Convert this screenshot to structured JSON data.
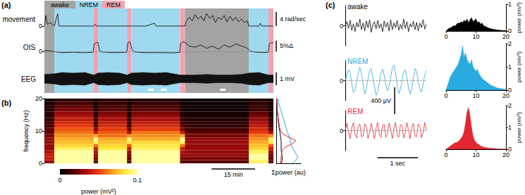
{
  "chart_data": [
    {
      "type": "line",
      "title": "(a)",
      "ylabel": "movement",
      "legend": "top",
      "states": {
        "names": [
          "awake",
          "NREM",
          "REM"
        ],
        "colors": [
          "#a3a3a3",
          "#9fd9f0",
          "#f2a3ad"
        ],
        "segments": [
          {
            "state": "awake",
            "start": 0,
            "end": 3.4
          },
          {
            "state": "NREM",
            "start": 3.4,
            "end": 17
          },
          {
            "state": "REM",
            "start": 17,
            "end": 18.5
          },
          {
            "state": "NREM",
            "start": 18.5,
            "end": 28.5
          },
          {
            "state": "REM",
            "start": 28.5,
            "end": 30
          },
          {
            "state": "NREM",
            "start": 30,
            "end": 46.8
          },
          {
            "state": "REM",
            "start": 46.8,
            "end": 48.5
          },
          {
            "state": "awake",
            "start": 48.5,
            "end": 70.5
          },
          {
            "state": "NREM",
            "start": 70.5,
            "end": 77.3
          },
          {
            "state": "REM",
            "start": 77.3,
            "end": 79
          }
        ]
      },
      "x": [
        0,
        0.5,
        1,
        2,
        3,
        3.4,
        4.6,
        5,
        10,
        16,
        17,
        17.5,
        18,
        25,
        30,
        35,
        38,
        38.5,
        45,
        48.5,
        49,
        50,
        51,
        52,
        53,
        54,
        55,
        56,
        57,
        58,
        59,
        60,
        61,
        62,
        63,
        64,
        65,
        66,
        67,
        68,
        69,
        70,
        70.5,
        74,
        74.5,
        75,
        79
      ],
      "values": [
        0.2,
        3.0,
        0.5,
        1.0,
        0.3,
        0,
        3.5,
        0,
        0,
        0,
        0,
        0.5,
        0,
        0,
        0,
        0,
        0.8,
        0,
        0,
        0,
        1.5,
        2.5,
        1.5,
        3.2,
        2.0,
        2.8,
        1.5,
        3.5,
        2.2,
        3.0,
        1.0,
        2.5,
        1.8,
        3.0,
        1.2,
        2.8,
        1.5,
        2.5,
        1.2,
        2.0,
        1.0,
        1.5,
        0,
        0,
        0.8,
        0,
        0
      ],
      "color": "#000000",
      "xlim": [
        0,
        79
      ],
      "ylim": [
        -1,
        5
      ],
      "yticks": [
        0
      ],
      "tick_labels": "y",
      "scalebar": {
        "value": 4,
        "label": "4 rad/sec"
      }
    },
    {
      "type": "line",
      "ylabel": "OIS",
      "x": [
        0,
        2,
        3.4,
        6,
        10,
        14,
        16.8,
        17.2,
        18,
        18.5,
        19,
        20,
        24,
        28.4,
        28.8,
        29.5,
        30.2,
        31,
        35,
        40,
        44,
        46.7,
        47,
        48,
        48.7,
        50,
        52,
        54,
        56,
        58,
        60,
        62,
        64,
        66,
        68,
        70,
        71,
        73,
        76,
        77.2,
        77.6,
        78.5,
        79
      ],
      "values": [
        0.5,
        0.3,
        0,
        -0.5,
        -0.3,
        -0.5,
        -0.3,
        3.5,
        4.2,
        4.0,
        0.5,
        -0.2,
        -0.5,
        -0.3,
        4.0,
        4.5,
        1.0,
        -0.2,
        -0.5,
        -0.5,
        -0.6,
        -0.4,
        3.8,
        4.5,
        4.0,
        2.5,
        2.0,
        3.0,
        1.5,
        2.5,
        1.0,
        3.0,
        2.0,
        3.5,
        2.5,
        1.5,
        0.2,
        -0.3,
        -0.4,
        -0.3,
        3.5,
        4.2,
        4.0
      ],
      "color": "#000000",
      "xlim": [
        0,
        79
      ],
      "ylim": [
        -6,
        10
      ],
      "yticks": [
        0
      ],
      "grid": true,
      "tick_labels": "y",
      "scalebar": {
        "value": 5,
        "label": "5%Δ"
      }
    },
    {
      "type": "band",
      "ylabel": "EEG",
      "x": [
        0,
        3.4,
        6,
        10,
        14,
        17,
        18.5,
        22,
        26,
        28.5,
        30,
        34,
        38,
        42,
        46.8,
        48.5,
        52,
        56,
        60,
        64,
        68,
        70.5,
        74,
        77.3,
        79
      ],
      "upper": [
        0.35,
        0.4,
        0.5,
        0.45,
        0.5,
        0.3,
        0.45,
        0.5,
        0.45,
        0.3,
        0.45,
        0.5,
        0.45,
        0.5,
        0.3,
        0.3,
        0.3,
        0.35,
        0.3,
        0.3,
        0.35,
        0.45,
        0.5,
        0.3,
        0.3
      ],
      "lower": [
        -0.35,
        -0.4,
        -0.5,
        -0.45,
        -0.5,
        -0.3,
        -0.45,
        -0.5,
        -0.45,
        -0.3,
        -0.45,
        -0.5,
        -0.45,
        -0.5,
        -0.3,
        -0.3,
        -0.3,
        -0.35,
        -0.3,
        -0.3,
        -0.35,
        -0.45,
        -0.5,
        -0.3,
        -0.3
      ],
      "color": "#111111",
      "xlim": [
        0,
        79
      ],
      "ylim": [
        -1.1,
        1.1
      ],
      "tick_labels": false,
      "excerpts": [
        [
          35.8,
          37.7
        ],
        [
          40.1,
          42.1
        ],
        [
          60.6,
          62.5
        ]
      ],
      "scalebar": {
        "value": 1,
        "label": "1 mV"
      }
    },
    {
      "type": "heatmap",
      "title": "(b)",
      "ylabel": "frequency (Hz)",
      "time_edges": [
        0,
        3.4,
        17,
        18.5,
        28.5,
        30,
        46.8,
        48.5,
        70.5,
        77.3,
        79
      ],
      "freq_edges": [
        0,
        1,
        2,
        3,
        4,
        5,
        6,
        7,
        8,
        9,
        10,
        11,
        12,
        13,
        14,
        15,
        16,
        17,
        18,
        19,
        20
      ],
      "power": [
        [
          0.03,
          0.04,
          0.04,
          0.035,
          0.03,
          0.03,
          0.03,
          0.03,
          0.025,
          0.02,
          0.02,
          0.015,
          0.015,
          0.01,
          0.01,
          0.01,
          0.008,
          0.006,
          0.005,
          0.004
        ],
        [
          0.1,
          0.1,
          0.1,
          0.1,
          0.09,
          0.08,
          0.075,
          0.07,
          0.065,
          0.06,
          0.055,
          0.05,
          0.045,
          0.04,
          0.035,
          0.03,
          0.025,
          0.02,
          0.015,
          0.01
        ],
        [
          0.02,
          0.025,
          0.03,
          0.035,
          0.04,
          0.06,
          0.09,
          0.1,
          0.07,
          0.04,
          0.025,
          0.02,
          0.015,
          0.012,
          0.01,
          0.008,
          0.006,
          0.005,
          0.004,
          0.003
        ],
        [
          0.1,
          0.1,
          0.1,
          0.1,
          0.085,
          0.08,
          0.075,
          0.07,
          0.06,
          0.055,
          0.05,
          0.045,
          0.04,
          0.035,
          0.03,
          0.025,
          0.02,
          0.015,
          0.012,
          0.01
        ],
        [
          0.02,
          0.02,
          0.025,
          0.03,
          0.04,
          0.055,
          0.085,
          0.095,
          0.065,
          0.035,
          0.02,
          0.015,
          0.012,
          0.01,
          0.008,
          0.006,
          0.005,
          0.004,
          0.003,
          0.003
        ],
        [
          0.1,
          0.1,
          0.1,
          0.1,
          0.09,
          0.085,
          0.08,
          0.07,
          0.065,
          0.06,
          0.05,
          0.045,
          0.04,
          0.035,
          0.03,
          0.025,
          0.02,
          0.015,
          0.012,
          0.008
        ],
        [
          0.02,
          0.025,
          0.03,
          0.035,
          0.04,
          0.06,
          0.09,
          0.1,
          0.07,
          0.04,
          0.025,
          0.02,
          0.015,
          0.012,
          0.01,
          0.008,
          0.006,
          0.005,
          0.004,
          0.003
        ],
        [
          0.02,
          0.025,
          0.03,
          0.03,
          0.03,
          0.03,
          0.03,
          0.03,
          0.025,
          0.02,
          0.015,
          0.012,
          0.01,
          0.008,
          0.006,
          0.005,
          0.004,
          0.003,
          0.003,
          0.002
        ],
        [
          0.09,
          0.1,
          0.1,
          0.09,
          0.08,
          0.075,
          0.07,
          0.065,
          0.06,
          0.05,
          0.045,
          0.04,
          0.035,
          0.03,
          0.025,
          0.02,
          0.015,
          0.012,
          0.01,
          0.008
        ],
        [
          0.02,
          0.02,
          0.025,
          0.03,
          0.04,
          0.055,
          0.085,
          0.095,
          0.065,
          0.035,
          0.02,
          0.015,
          0.012,
          0.01,
          0.008,
          0.006,
          0.005,
          0.004,
          0.003,
          0.003
        ]
      ],
      "xlim": [
        0,
        79
      ],
      "ylim": [
        0,
        20
      ],
      "yticks": [
        0,
        10,
        20
      ],
      "tick_labels": "y",
      "colorbar": {
        "range": [
          0,
          0.1
        ],
        "ticks": [
          0,
          0.1
        ],
        "label": "power (mV²)",
        "colors": [
          "#000000",
          "#4a0000",
          "#a80c0c",
          "#e63b0e",
          "#f99a1c",
          "#ffe63c",
          "#ffffa0"
        ]
      },
      "scalebar": {
        "value": 15,
        "label": "15 min"
      }
    },
    {
      "type": "line",
      "xlabel": "Σpower (au)",
      "y": [
        0,
        1,
        2,
        3,
        4,
        5,
        6,
        7,
        8,
        9,
        10,
        11,
        12,
        13,
        14,
        15,
        16,
        17,
        18,
        19,
        20
      ],
      "series": [
        {
          "color": "#000000",
          "values": [
            0.5,
            0.6,
            0.6,
            0.55,
            0.5,
            0.5,
            0.5,
            0.5,
            0.45,
            0.4,
            0.35,
            0.3,
            0.25,
            0.2,
            0.18,
            0.15,
            0.12,
            0.1,
            0.08,
            0.06,
            0.05
          ]
        },
        {
          "color": "#29abe2",
          "values": [
            1.6,
            2.0,
            2.2,
            2.0,
            1.8,
            1.6,
            1.5,
            1.4,
            1.3,
            1.2,
            1.1,
            1.0,
            0.9,
            0.8,
            0.7,
            0.6,
            0.5,
            0.4,
            0.3,
            0.2,
            0.15
          ]
        },
        {
          "color": "#e3262f",
          "values": [
            0.4,
            0.45,
            0.5,
            0.55,
            0.6,
            0.9,
            1.6,
            2.0,
            1.3,
            0.7,
            0.45,
            0.35,
            0.3,
            0.25,
            0.2,
            0.15,
            0.12,
            0.1,
            0.08,
            0.06,
            0.05
          ]
        }
      ],
      "xlim": [
        0,
        2.5
      ],
      "ylim": [
        0,
        20
      ],
      "tick_labels": false
    },
    {
      "type": "line",
      "title": "(c)",
      "x": [
        0,
        0.04,
        0.08,
        0.12,
        0.16,
        0.2,
        0.24,
        0.28,
        0.32,
        0.36,
        0.4,
        0.44,
        0.48,
        0.52,
        0.56,
        0.6,
        0.64,
        0.68,
        0.72,
        0.76,
        0.8,
        0.84,
        0.88,
        0.92,
        0.96,
        1,
        1.04,
        1.08,
        1.12,
        1.16,
        1.2,
        1.24,
        1.28,
        1.32,
        1.36,
        1.4,
        1.44,
        1.48,
        1.52,
        1.56,
        1.6,
        1.64,
        1.68,
        1.72,
        1.76,
        1.8,
        1.84,
        1.88,
        1.92,
        1.96,
        2
      ],
      "series": [
        {
          "name": "awake",
          "color": "#000000",
          "values": [
            0,
            60,
            -40,
            80,
            -70,
            30,
            -90,
            50,
            -20,
            100,
            -60,
            40,
            -80,
            70,
            -30,
            90,
            -100,
            20,
            60,
            -50,
            80,
            -40,
            30,
            -90,
            70,
            -20,
            50,
            -80,
            90,
            -60,
            40,
            -30,
            80,
            -70,
            20,
            -50,
            100,
            -40,
            60,
            -90,
            30,
            -20,
            70,
            -60,
            50,
            -80,
            40,
            -30,
            90,
            -50,
            20
          ]
        },
        {
          "name": "NREM",
          "color": "#29abe2",
          "values": [
            0,
            80,
            160,
            120,
            -40,
            -180,
            -140,
            -20,
            100,
            200,
            90,
            -60,
            -200,
            -120,
            20,
            150,
            180,
            60,
            -100,
            -220,
            -160,
            -30,
            110,
            170,
            80,
            -50,
            -150,
            -90,
            40,
            190,
            230,
            100,
            -70,
            -190,
            -130,
            10,
            140,
            160,
            50,
            -110,
            -200,
            -120,
            30,
            180,
            140,
            0,
            -130,
            -170,
            -60,
            90,
            150
          ]
        },
        {
          "name": "REM",
          "color": "#e3262f",
          "values": [
            0,
            110,
            -20,
            -120,
            40,
            120,
            -60,
            -110,
            70,
            100,
            -90,
            -80,
            100,
            60,
            -120,
            -30,
            110,
            0,
            -120,
            40,
            120,
            -60,
            -100,
            80,
            90,
            -100,
            -50,
            110,
            20,
            -120,
            30,
            120,
            -70,
            -100,
            90,
            70,
            -110,
            -40,
            120,
            10,
            -120,
            50,
            110,
            -80,
            -90,
            100,
            60,
            -110,
            -30,
            120,
            0
          ]
        }
      ],
      "xlim": [
        0,
        2
      ],
      "ylim": [
        -300,
        300
      ],
      "yticks": [
        0
      ],
      "grid": true,
      "tick_labels": "y",
      "scalebars": [
        {
          "axis": "y",
          "value": 400,
          "label": "400 µV"
        },
        {
          "axis": "x",
          "value": 1,
          "label": "1 sec"
        }
      ]
    },
    {
      "type": "area",
      "ylabel": "power (mV²)",
      "x": [
        0,
        0.5,
        1,
        1.5,
        2,
        2.5,
        3,
        3.5,
        4,
        4.5,
        5,
        5.5,
        6,
        6.5,
        7,
        7.5,
        8,
        8.5,
        9,
        9.5,
        10,
        10.5,
        11,
        11.5,
        12,
        12.5,
        13,
        13.5,
        14,
        14.5,
        15,
        15.5,
        16,
        16.5,
        17,
        17.5,
        18,
        18.5,
        19,
        19.5,
        20
      ],
      "series": [
        {
          "color": "#000000",
          "ylim": [
            0,
            1
          ],
          "yticks": [
            0,
            1
          ],
          "values": [
            0,
            0.05,
            0.1,
            0.12,
            0.15,
            0.2,
            0.18,
            0.25,
            0.3,
            0.28,
            0.35,
            0.3,
            0.4,
            0.35,
            0.45,
            0.3,
            0.42,
            0.5,
            0.35,
            0.4,
            0.45,
            0.3,
            0.35,
            0.25,
            0.3,
            0.2,
            0.18,
            0.15,
            0.12,
            0.1,
            0.08,
            0.07,
            0.06,
            0.05,
            0.04,
            0.03,
            0.03,
            0.02,
            0.02,
            0.01,
            0.01
          ]
        },
        {
          "color": "#29abe2",
          "ylim": [
            0,
            2
          ],
          "yticks": [
            0,
            1,
            2
          ],
          "values": [
            0,
            0.2,
            0.4,
            0.6,
            0.7,
            0.8,
            0.9,
            1.0,
            1.1,
            1.3,
            1.5,
            1.9,
            1.4,
            1.6,
            1.3,
            1.2,
            1.1,
            1.3,
            1.0,
            0.9,
            0.8,
            0.9,
            0.7,
            0.6,
            0.5,
            0.45,
            0.4,
            0.35,
            0.3,
            0.25,
            0.2,
            0.18,
            0.15,
            0.12,
            0.1,
            0.08,
            0.07,
            0.06,
            0.05,
            0.04,
            0.03
          ]
        },
        {
          "color": "#e3262f",
          "ylim": [
            0,
            2
          ],
          "yticks": [
            0,
            1,
            2
          ],
          "values": [
            0,
            0.05,
            0.1,
            0.15,
            0.2,
            0.25,
            0.3,
            0.3,
            0.35,
            0.4,
            0.5,
            0.6,
            0.8,
            1.2,
            1.7,
            1.9,
            1.5,
            1.0,
            0.6,
            0.4,
            0.3,
            0.25,
            0.2,
            0.15,
            0.12,
            0.1,
            0.08,
            0.07,
            0.06,
            0.05,
            0.04,
            0.04,
            0.03,
            0.03,
            0.02,
            0.02,
            0.02,
            0.01,
            0.01,
            0.01,
            0.01
          ]
        }
      ],
      "xlim": [
        0,
        20
      ],
      "xticks": [
        0,
        10,
        20
      ]
    }
  ]
}
